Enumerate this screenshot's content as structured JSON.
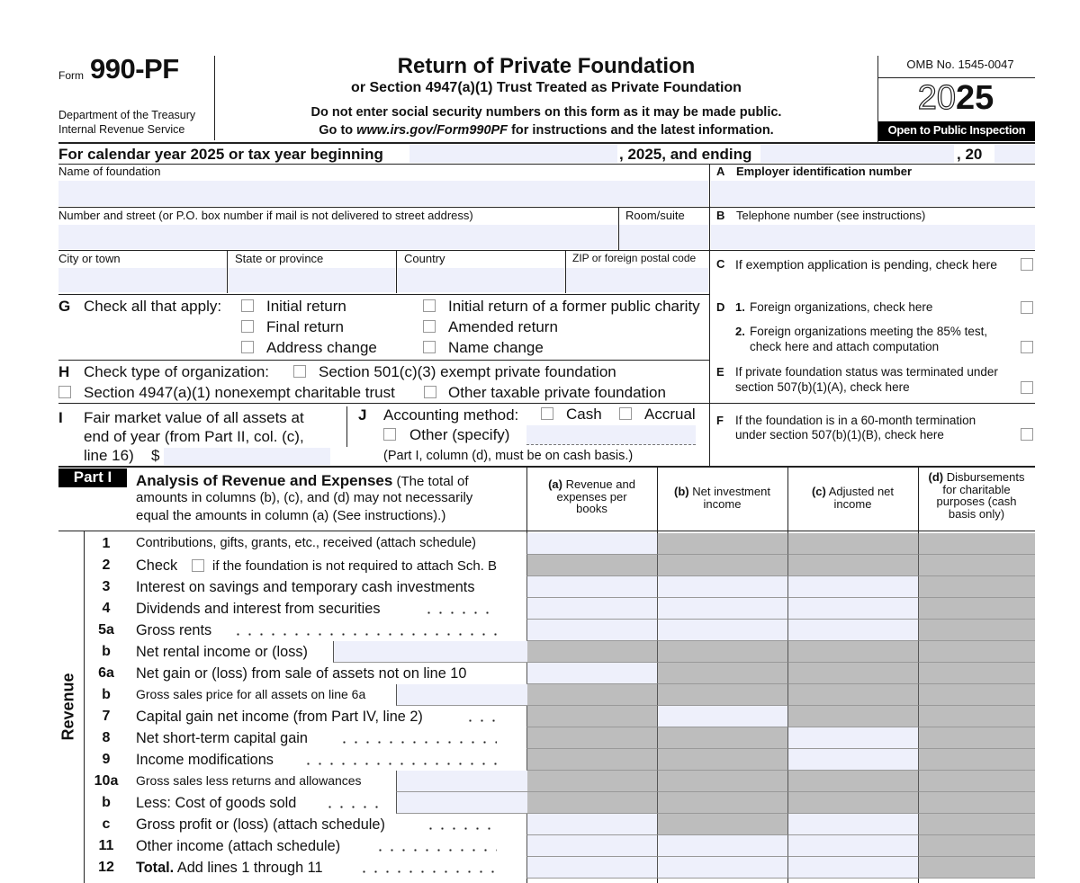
{
  "header": {
    "form_prefix": "Form",
    "form_number": "990-PF",
    "department": "Department of the Treasury",
    "irs": "Internal Revenue Service",
    "title": "Return of Private Foundation",
    "subtitle": "or Section 4947(a)(1) Trust Treated as Private Foundation",
    "notice": "Do not enter social security numbers on this form as it may be made public.",
    "goto": [
      "Go to ",
      "www.irs.gov/Form990PF",
      " for instructions and the latest information."
    ],
    "omb": "OMB No. 1545-0047",
    "year": [
      "20",
      "25"
    ],
    "inspection": "Open to Public Inspection"
  },
  "calendar": {
    "start": "For calendar year 2025 or tax year beginning",
    "mid": ", 2025, and ending",
    "end": ", 20"
  },
  "fields": {
    "name": "Name of foundation",
    "street": "Number and street (or P.O. box number if mail is not delivered to street address)",
    "room": "Room/suite",
    "city": "City or town",
    "state": "State or province",
    "country": "Country",
    "zip": "ZIP or foreign postal code"
  },
  "right": {
    "A": {
      "letter": "A",
      "text": "Employer identification number"
    },
    "B": {
      "letter": "B",
      "text": "Telephone number (see instructions)"
    },
    "C": {
      "letter": "C",
      "text": "If exemption application is pending, check here"
    },
    "D": {
      "letter": "D",
      "num1": "1.",
      "text1": "Foreign organizations, check here",
      "num2": "2.",
      "text2": [
        "Foreign organizations meeting the 85% test,",
        "check here and attach computation"
      ]
    },
    "E": {
      "letter": "E",
      "text": [
        "If private foundation status was terminated under",
        "section 507(b)(1)(A), check here"
      ]
    },
    "F": {
      "letter": "F",
      "text": [
        "If the foundation is in a 60-month termination",
        "under section 507(b)(1)(B), check here"
      ]
    }
  },
  "G": {
    "letter": "G",
    "label": "Check all that apply:",
    "options": [
      "Initial return",
      "Final return",
      "Address change",
      "Initial return of a former public charity",
      "Amended return",
      "Name change"
    ]
  },
  "H": {
    "letter": "H",
    "label": "Check type of organization:",
    "options": [
      "Section 501(c)(3) exempt private foundation",
      "Section 4947(a)(1) nonexempt charitable trust",
      "Other taxable private foundation"
    ]
  },
  "I": {
    "letter": "I",
    "lines": [
      "Fair market value of all assets at",
      "end of year (from Part II, col. (c),",
      "line 16)"
    ],
    "dollar": "$"
  },
  "J": {
    "letter": "J",
    "label": "Accounting method:",
    "options": [
      "Cash",
      "Accrual",
      "Other (specify)"
    ],
    "note": "(Part I, column (d), must be on cash basis.)"
  },
  "part1": {
    "label": "Part I",
    "title": "Analysis of Revenue and Expenses",
    "title_note": " (The total of",
    "desc": [
      "amounts in columns (b), (c), and (d) may not necessarily",
      "equal the amounts in column (a) (See instructions).)"
    ],
    "columns": [
      {
        "key": "(a)",
        "text": " Revenue and expenses per books"
      },
      {
        "key": "(b)",
        "text": " Net investment income"
      },
      {
        "key": "(c)",
        "text": " Adjusted net income"
      },
      {
        "key": "(d)",
        "text": " Disbursements for charitable purposes (cash basis only)"
      }
    ],
    "side": "Revenue",
    "lines": [
      {
        "num": "1",
        "text": "Contributions, gifts, grants, etc., received (attach schedule)"
      },
      {
        "num": "2",
        "text": "Check",
        "after": "if the foundation is not required to attach Sch. B"
      },
      {
        "num": "3",
        "text": "Interest on savings and temporary cash investments"
      },
      {
        "num": "4",
        "text": "Dividends and interest from securities"
      },
      {
        "num": "5a",
        "text": "Gross rents"
      },
      {
        "num": "b",
        "text": "Net rental income or (loss)"
      },
      {
        "num": "6a",
        "text": "Net gain or (loss) from sale of assets not on line 10"
      },
      {
        "num": "b",
        "text": "Gross sales price for all assets on line 6a"
      },
      {
        "num": "7",
        "text": "Capital gain net income (from Part IV, line 2)"
      },
      {
        "num": "8",
        "text": "Net short-term capital gain"
      },
      {
        "num": "9",
        "text": "Income modifications"
      },
      {
        "num": "10a",
        "text": "Gross sales less returns and allowances"
      },
      {
        "num": "b",
        "text": "Less: Cost of goods sold"
      },
      {
        "num": "c",
        "text": "Gross profit or (loss) (attach schedule)"
      },
      {
        "num": "11",
        "text": "Other income (attach schedule)"
      },
      {
        "num": "12",
        "lead": "Total.",
        "text": " Add lines 1 through 11"
      }
    ]
  }
}
